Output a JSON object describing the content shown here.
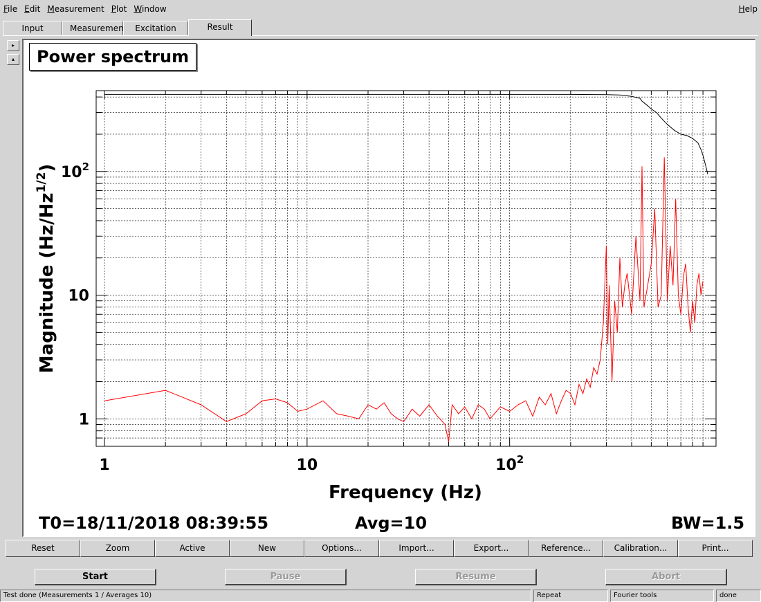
{
  "menu": {
    "items": [
      {
        "ul": "F",
        "rest": "ile"
      },
      {
        "ul": "E",
        "rest": "dit"
      },
      {
        "ul": "M",
        "rest": "easurement"
      },
      {
        "ul": "P",
        "rest": "lot"
      },
      {
        "ul": "W",
        "rest": "indow"
      }
    ],
    "help": {
      "ul": "H",
      "rest": "elp"
    }
  },
  "tabs": [
    "Input",
    "Measurement",
    "Excitation",
    "Result"
  ],
  "active_tab": "Result",
  "side_buttons": [
    "▸",
    "▴"
  ],
  "plot": {
    "title": "Power spectrum",
    "t0": "T0=18/11/2018 08:39:55",
    "avg": "Avg=10",
    "bw": "BW=1.5"
  },
  "chart_data": {
    "type": "line",
    "x_scale": "log",
    "y_scale": "log",
    "xlim": [
      1,
      950
    ],
    "ylim": [
      0.6,
      450
    ],
    "xlabel": "Frequency (Hz)",
    "ylabel": "Magnitude (Hz/Hz^(1/2))",
    "xticks": [
      {
        "value": 1,
        "base": "1",
        "exp": ""
      },
      {
        "value": 10,
        "base": "10",
        "exp": ""
      },
      {
        "value": 100,
        "base": "10",
        "exp": "2"
      }
    ],
    "yticks": [
      {
        "value": 1,
        "base": "1",
        "exp": ""
      },
      {
        "value": 10,
        "base": "10",
        "exp": ""
      },
      {
        "value": 100,
        "base": "10",
        "exp": "2"
      }
    ],
    "grid": true,
    "colors": {
      "red": "#ff0000",
      "black": "#000000"
    },
    "series": [
      {
        "color": "red",
        "x": [
          1,
          2,
          3,
          4,
          5,
          6,
          7,
          8,
          9,
          10,
          12,
          14,
          16,
          18,
          20,
          22,
          24,
          26,
          28,
          30,
          33,
          36,
          40,
          44,
          48,
          50,
          52,
          56,
          60,
          65,
          70,
          75,
          80,
          90,
          100,
          110,
          120,
          130,
          140,
          150,
          160,
          170,
          180,
          190,
          200,
          210,
          220,
          230,
          240,
          250,
          260,
          270,
          280,
          290,
          300,
          305,
          310,
          320,
          330,
          340,
          350,
          360,
          370,
          380,
          400,
          420,
          440,
          450,
          460,
          480,
          500,
          520,
          540,
          560,
          580,
          600,
          620,
          640,
          660,
          680,
          700,
          720,
          740,
          760,
          780,
          800,
          820,
          840,
          860,
          880,
          900
        ],
        "y": [
          1.4,
          1.7,
          1.3,
          0.95,
          1.1,
          1.4,
          1.45,
          1.35,
          1.15,
          1.2,
          1.4,
          1.1,
          1.05,
          1.0,
          1.3,
          1.2,
          1.35,
          1.1,
          1.0,
          0.95,
          1.2,
          1.05,
          1.3,
          1.05,
          0.9,
          0.65,
          1.3,
          1.1,
          1.25,
          1.0,
          1.3,
          1.2,
          1.0,
          1.25,
          1.15,
          1.3,
          1.4,
          1.05,
          1.5,
          1.3,
          1.6,
          1.1,
          1.4,
          1.7,
          1.6,
          1.3,
          1.9,
          1.6,
          2.1,
          1.8,
          2.6,
          2.3,
          3.0,
          6.0,
          25.0,
          4.0,
          12.0,
          2.0,
          9.0,
          5.0,
          20.0,
          8.0,
          12.0,
          15.0,
          7.0,
          30.0,
          9.0,
          110.0,
          8.0,
          12.0,
          18.0,
          50.0,
          8.0,
          10.0,
          130.0,
          9.0,
          25.0,
          12.0,
          60.0,
          10.0,
          7.0,
          14.0,
          18.0,
          8.0,
          5.0,
          9.0,
          6.0,
          12.0,
          15.0,
          10.0,
          13.0
        ]
      },
      {
        "color": "black",
        "x": [
          1,
          100,
          200,
          300,
          350,
          400,
          440,
          450,
          480,
          500,
          530,
          560,
          600,
          650,
          700,
          750,
          800,
          850,
          880,
          900,
          930,
          950
        ],
        "y": [
          420,
          420,
          420,
          418,
          415,
          405,
          390,
          370,
          340,
          320,
          300,
          270,
          240,
          215,
          200,
          195,
          185,
          170,
          150,
          135,
          110,
          95
        ]
      }
    ]
  },
  "buttons": [
    "Reset",
    "Zoom",
    "Active",
    "New",
    "Options...",
    "Import...",
    "Export...",
    "Reference...",
    "Calibration...",
    "Print..."
  ],
  "run_buttons": {
    "start": "Start",
    "pause": "Pause",
    "resume": "Resume",
    "abort": "Abort"
  },
  "status": {
    "main": "Test done (Measurements 1 / Averages 10)",
    "repeat": "Repeat",
    "tools": "Fourier tools",
    "state": "done"
  }
}
